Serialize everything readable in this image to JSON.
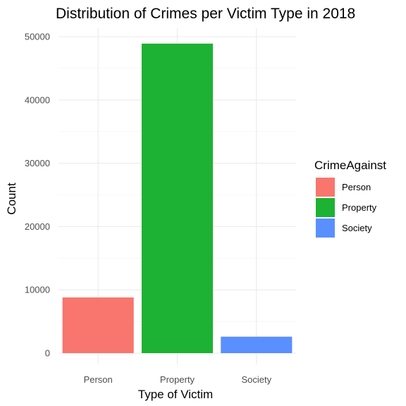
{
  "chart_data": {
    "type": "bar",
    "title": "Distribution of Crimes per Victim Type in 2018",
    "xlabel": "Type of Victim",
    "ylabel": "Count",
    "categories": [
      "Person",
      "Property",
      "Society"
    ],
    "values": [
      8800,
      48900,
      2600
    ],
    "colors": [
      "#F8766D",
      "#1DB233",
      "#5A8FFF"
    ],
    "ylim": [
      0,
      52000
    ],
    "yticks": [
      0,
      10000,
      20000,
      30000,
      40000,
      50000
    ],
    "ytick_labels": [
      "0",
      "10000",
      "20000",
      "30000",
      "40000",
      "50000"
    ],
    "grid": true,
    "legend": {
      "title": "CrimeAgainst",
      "placement": "right",
      "entries": [
        "Person",
        "Property",
        "Society"
      ]
    }
  }
}
